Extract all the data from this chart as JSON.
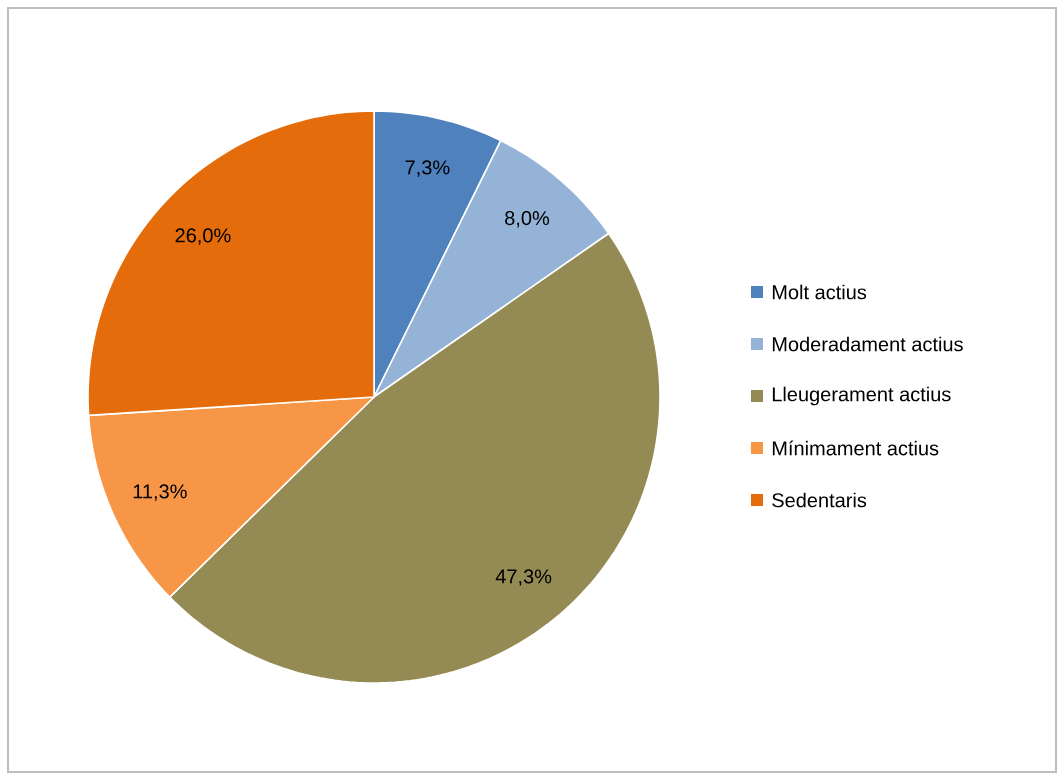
{
  "chart_data": {
    "type": "pie",
    "categories": [
      "Molt actius",
      "Moderadament actius",
      "Lleugerament actius",
      "Mínimament actius",
      "Sedentaris"
    ],
    "values": [
      7.3,
      8.0,
      47.3,
      11.3,
      26.0
    ],
    "colors": [
      "#4f81bd",
      "#95b3d7",
      "#948a54",
      "#f79646",
      "#e46c0a"
    ],
    "value_labels": [
      "7,3%",
      "8,0%",
      "47,3%",
      "11,3%",
      "26,0%"
    ],
    "legend": "right"
  }
}
